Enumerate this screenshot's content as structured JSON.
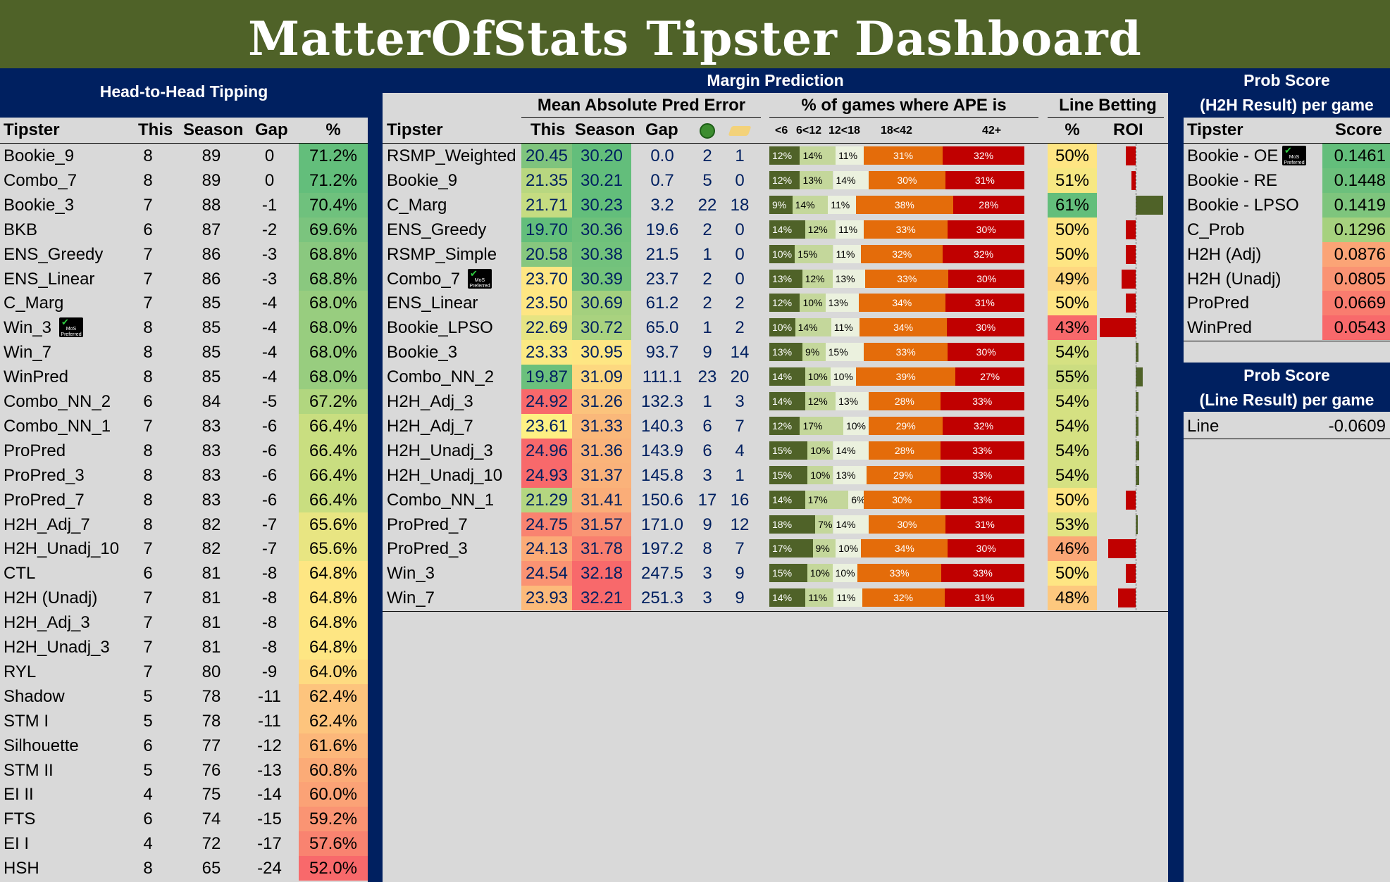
{
  "title": "MatterOfStats Tipster Dashboard",
  "badge": {
    "line1": "MoS",
    "line2": "Preferred"
  },
  "h2h": {
    "heading": "Head-to-Head Tipping",
    "headers": [
      "Tipster",
      "This",
      "Season",
      "Gap",
      "%"
    ],
    "rows": [
      {
        "tipster": "Bookie_9",
        "this": "8",
        "season": "89",
        "gap": "0",
        "pct": "71.2%",
        "color": "#63be7b"
      },
      {
        "tipster": "Combo_7",
        "this": "8",
        "season": "89",
        "gap": "0",
        "pct": "71.2%",
        "color": "#63be7b"
      },
      {
        "tipster": "Bookie_3",
        "this": "7",
        "season": "88",
        "gap": "-1",
        "pct": "70.4%",
        "color": "#6fc17d"
      },
      {
        "tipster": "BKB",
        "this": "6",
        "season": "87",
        "gap": "-2",
        "pct": "69.6%",
        "color": "#7bc47e"
      },
      {
        "tipster": "ENS_Greedy",
        "this": "7",
        "season": "86",
        "gap": "-3",
        "pct": "68.8%",
        "color": "#8ac87f"
      },
      {
        "tipster": "ENS_Linear",
        "this": "7",
        "season": "86",
        "gap": "-3",
        "pct": "68.8%",
        "color": "#8ac87f"
      },
      {
        "tipster": "C_Marg",
        "this": "7",
        "season": "85",
        "gap": "-4",
        "pct": "68.0%",
        "color": "#98cd7f"
      },
      {
        "tipster": "Win_3",
        "this": "8",
        "season": "85",
        "gap": "-4",
        "pct": "68.0%",
        "color": "#98cd7f",
        "badge": true
      },
      {
        "tipster": "Win_7",
        "this": "8",
        "season": "85",
        "gap": "-4",
        "pct": "68.0%",
        "color": "#98cd7f"
      },
      {
        "tipster": "WinPred",
        "this": "8",
        "season": "85",
        "gap": "-4",
        "pct": "68.0%",
        "color": "#98cd7f"
      },
      {
        "tipster": "Combo_NN_2",
        "this": "6",
        "season": "84",
        "gap": "-5",
        "pct": "67.2%",
        "color": "#b1d67f"
      },
      {
        "tipster": "Combo_NN_1",
        "this": "7",
        "season": "83",
        "gap": "-6",
        "pct": "66.4%",
        "color": "#c9de80"
      },
      {
        "tipster": "ProPred",
        "this": "8",
        "season": "83",
        "gap": "-6",
        "pct": "66.4%",
        "color": "#c9de80"
      },
      {
        "tipster": "ProPred_3",
        "this": "8",
        "season": "83",
        "gap": "-6",
        "pct": "66.4%",
        "color": "#c9de80"
      },
      {
        "tipster": "ProPred_7",
        "this": "8",
        "season": "83",
        "gap": "-6",
        "pct": "66.4%",
        "color": "#c9de80"
      },
      {
        "tipster": "H2H_Adj_7",
        "this": "8",
        "season": "82",
        "gap": "-7",
        "pct": "65.6%",
        "color": "#e8e582"
      },
      {
        "tipster": "H2H_Unadj_10",
        "this": "7",
        "season": "82",
        "gap": "-7",
        "pct": "65.6%",
        "color": "#e8e582"
      },
      {
        "tipster": "CTL",
        "this": "6",
        "season": "81",
        "gap": "-8",
        "pct": "64.8%",
        "color": "#fee683"
      },
      {
        "tipster": "H2H (Unadj)",
        "this": "7",
        "season": "81",
        "gap": "-8",
        "pct": "64.8%",
        "color": "#fee683"
      },
      {
        "tipster": "H2H_Adj_3",
        "this": "7",
        "season": "81",
        "gap": "-8",
        "pct": "64.8%",
        "color": "#fee683"
      },
      {
        "tipster": "H2H_Unadj_3",
        "this": "7",
        "season": "81",
        "gap": "-8",
        "pct": "64.8%",
        "color": "#fee683"
      },
      {
        "tipster": "RYL",
        "this": "7",
        "season": "80",
        "gap": "-9",
        "pct": "64.0%",
        "color": "#fedb81"
      },
      {
        "tipster": "Shadow",
        "this": "5",
        "season": "78",
        "gap": "-11",
        "pct": "62.4%",
        "color": "#fdc47d"
      },
      {
        "tipster": "STM I",
        "this": "5",
        "season": "78",
        "gap": "-11",
        "pct": "62.4%",
        "color": "#fdc47d"
      },
      {
        "tipster": "Silhouette",
        "this": "6",
        "season": "77",
        "gap": "-12",
        "pct": "61.6%",
        "color": "#fcb77a"
      },
      {
        "tipster": "STM II",
        "this": "5",
        "season": "76",
        "gap": "-13",
        "pct": "60.8%",
        "color": "#fbab77"
      },
      {
        "tipster": "EI II",
        "this": "4",
        "season": "75",
        "gap": "-14",
        "pct": "60.0%",
        "color": "#fba276"
      },
      {
        "tipster": "FTS",
        "this": "6",
        "season": "74",
        "gap": "-15",
        "pct": "59.2%",
        "color": "#fa9473"
      },
      {
        "tipster": "EI I",
        "this": "4",
        "season": "72",
        "gap": "-17",
        "pct": "57.6%",
        "color": "#f98370"
      },
      {
        "tipster": "HSH",
        "this": "8",
        "season": "65",
        "gap": "-24",
        "pct": "52.0%",
        "color": "#f8696b"
      }
    ]
  },
  "margin": {
    "heading": "Margin Prediction",
    "mape_heading": "Mean Absolute Pred Error",
    "ape_heading": "% of games where APE is",
    "line_heading": "Line Betting",
    "headers": [
      "Tipster",
      "This",
      "Season",
      "Gap",
      "%",
      "ROI"
    ],
    "ape_headers": [
      "<6",
      "6<12",
      "12<18",
      "18<42",
      "42+"
    ],
    "rows": [
      {
        "tipster": "RSMP_Weighted",
        "this": "20.45",
        "this_color": "#7fc47d",
        "season": "30.20",
        "season_color": "#63be7b",
        "gap": "0.0",
        "best": "2",
        "worst": "1",
        "ape": [
          12,
          14,
          11,
          31,
          32
        ],
        "ape_labels": [
          "12%",
          "14%",
          "11%",
          "31%",
          "32%"
        ],
        "pct": "50%",
        "pct_color": "#fee583",
        "roi": -0.14
      },
      {
        "tipster": "Bookie_9",
        "this": "21.35",
        "this_color": "#b8d780",
        "season": "30.21",
        "season_color": "#63be7b",
        "gap": "0.7",
        "best": "5",
        "worst": "0",
        "ape": [
          12,
          13,
          14,
          30,
          31
        ],
        "ape_labels": [
          "12%",
          "13%",
          "14%",
          "30%",
          "31%"
        ],
        "pct": "51%",
        "pct_color": "#f6e883",
        "roi": -0.06
      },
      {
        "tipster": "C_Marg",
        "this": "21.71",
        "this_color": "#c5dc81",
        "season": "30.23",
        "season_color": "#63be7b",
        "gap": "3.2",
        "best": "22",
        "worst": "18",
        "ape": [
          9,
          14,
          11,
          38,
          28
        ],
        "ape_labels": [
          "9%",
          "14%",
          "11%",
          "38%",
          "28%"
        ],
        "pct": "61%",
        "pct_color": "#63be7b",
        "roi": 0.38
      },
      {
        "tipster": "ENS_Greedy",
        "this": "19.70",
        "this_color": "#63be7b",
        "season": "30.36",
        "season_color": "#6ec17b",
        "gap": "19.6",
        "best": "2",
        "worst": "0",
        "ape": [
          14,
          12,
          11,
          33,
          30
        ],
        "ape_labels": [
          "14%",
          "12%",
          "11%",
          "33%",
          "30%"
        ],
        "pct": "50%",
        "pct_color": "#fee583",
        "roi": -0.14
      },
      {
        "tipster": "RSMP_Simple",
        "this": "20.58",
        "this_color": "#87c77e",
        "season": "30.38",
        "season_color": "#72c27c",
        "gap": "21.5",
        "best": "1",
        "worst": "0",
        "ape": [
          10,
          15,
          11,
          32,
          32
        ],
        "ape_labels": [
          "10%",
          "15%",
          "11%",
          "32%",
          "32%"
        ],
        "pct": "50%",
        "pct_color": "#fee583",
        "roi": -0.14
      },
      {
        "tipster": "Combo_7",
        "this": "23.70",
        "this_color": "#fee683",
        "season": "30.39",
        "season_color": "#75c37c",
        "gap": "23.7",
        "best": "2",
        "worst": "0",
        "ape": [
          13,
          12,
          13,
          33,
          30
        ],
        "ape_labels": [
          "13%",
          "12%",
          "13%",
          "33%",
          "30%"
        ],
        "pct": "49%",
        "pct_color": "#fed880",
        "roi": -0.2,
        "badge": true
      },
      {
        "tipster": "ENS_Linear",
        "this": "23.50",
        "this_color": "#fee683",
        "season": "30.69",
        "season_color": "#a4d07e",
        "gap": "61.2",
        "best": "2",
        "worst": "2",
        "ape": [
          12,
          10,
          13,
          34,
          31
        ],
        "ape_labels": [
          "12%",
          "10%",
          "13%",
          "34%",
          "31%"
        ],
        "pct": "50%",
        "pct_color": "#fee583",
        "roi": -0.14
      },
      {
        "tipster": "Bookie_LPSO",
        "this": "22.69",
        "this_color": "#e6e482",
        "season": "30.72",
        "season_color": "#a9d27f",
        "gap": "65.0",
        "best": "1",
        "worst": "2",
        "ape": [
          10,
          14,
          11,
          34,
          30
        ],
        "ape_labels": [
          "10%",
          "14%",
          "11%",
          "34%",
          "30%"
        ],
        "pct": "43%",
        "pct_color": "#f8696b",
        "roi": -0.5
      },
      {
        "tipster": "Bookie_3",
        "this": "23.33",
        "this_color": "#fbe983",
        "season": "30.95",
        "season_color": "#fee683",
        "gap": "93.7",
        "best": "9",
        "worst": "14",
        "ape": [
          13,
          9,
          15,
          33,
          30
        ],
        "ape_labels": [
          "13%",
          "9%",
          "15%",
          "33%",
          "30%"
        ],
        "pct": "54%",
        "pct_color": "#d5e182",
        "roi": 0.04
      },
      {
        "tipster": "Combo_NN_2",
        "this": "19.87",
        "this_color": "#6bc07c",
        "season": "31.09",
        "season_color": "#fdd880",
        "gap": "111.1",
        "best": "23",
        "worst": "20",
        "ape": [
          14,
          10,
          10,
          39,
          27
        ],
        "ape_labels": [
          "14%",
          "10%",
          "10%",
          "39%",
          "27%"
        ],
        "pct": "55%",
        "pct_color": "#ccdd81",
        "roi": 0.1
      },
      {
        "tipster": "H2H_Adj_3",
        "this": "24.92",
        "this_color": "#f8696b",
        "season": "31.26",
        "season_color": "#fbc37c",
        "gap": "132.3",
        "best": "1",
        "worst": "3",
        "ape": [
          14,
          12,
          13,
          28,
          33
        ],
        "ape_labels": [
          "14%",
          "12%",
          "13%",
          "28%",
          "33%"
        ],
        "pct": "54%",
        "pct_color": "#d5e182",
        "roi": 0.04
      },
      {
        "tipster": "H2H_Adj_7",
        "this": "23.61",
        "this_color": "#fef083",
        "season": "31.33",
        "season_color": "#fab87a",
        "gap": "140.3",
        "best": "6",
        "worst": "7",
        "ape": [
          12,
          17,
          10,
          29,
          32
        ],
        "ape_labels": [
          "12%",
          "17%",
          "10%",
          "29%",
          "32%"
        ],
        "pct": "54%",
        "pct_color": "#d5e182",
        "roi": 0.04
      },
      {
        "tipster": "H2H_Unadj_3",
        "this": "24.96",
        "this_color": "#f8696b",
        "season": "31.36",
        "season_color": "#fab47a",
        "gap": "143.9",
        "best": "6",
        "worst": "4",
        "ape": [
          15,
          10,
          14,
          28,
          33
        ],
        "ape_labels": [
          "15%",
          "10%",
          "14%",
          "28%",
          "33%"
        ],
        "pct": "54%",
        "pct_color": "#d5e182",
        "roi": 0.05
      },
      {
        "tipster": "H2H_Unadj_10",
        "this": "24.93",
        "this_color": "#f8696b",
        "season": "31.37",
        "season_color": "#fab27a",
        "gap": "145.8",
        "best": "3",
        "worst": "1",
        "ape": [
          15,
          10,
          13,
          29,
          33
        ],
        "ape_labels": [
          "15%",
          "10%",
          "13%",
          "29%",
          "33%"
        ],
        "pct": "54%",
        "pct_color": "#d5e182",
        "roi": 0.05
      },
      {
        "tipster": "Combo_NN_1",
        "this": "21.29",
        "this_color": "#b4d680",
        "season": "31.41",
        "season_color": "#faad78",
        "gap": "150.6",
        "best": "17",
        "worst": "16",
        "ape": [
          14,
          17,
          6,
          30,
          33
        ],
        "ape_labels": [
          "14%",
          "17%",
          "6%",
          "30%",
          "33%"
        ],
        "pct": "50%",
        "pct_color": "#fee583",
        "roi": -0.14
      },
      {
        "tipster": "ProPred_7",
        "this": "24.75",
        "this_color": "#f98370",
        "season": "31.57",
        "season_color": "#f99574",
        "gap": "171.0",
        "best": "9",
        "worst": "12",
        "ape": [
          18,
          7,
          14,
          30,
          31
        ],
        "ape_labels": [
          "18%",
          "7%",
          "14%",
          "30%",
          "31%"
        ],
        "pct": "53%",
        "pct_color": "#e2e483",
        "roi": 0.0
      },
      {
        "tipster": "ProPred_3",
        "this": "24.13",
        "this_color": "#fbab77",
        "season": "31.78",
        "season_color": "#f97f6f",
        "gap": "197.2",
        "best": "8",
        "worst": "7",
        "ape": [
          17,
          9,
          10,
          34,
          30
        ],
        "ape_labels": [
          "17%",
          "9%",
          "10%",
          "34%",
          "30%"
        ],
        "pct": "46%",
        "pct_color": "#fba776",
        "roi": -0.38
      },
      {
        "tipster": "Win_3",
        "this": "24.54",
        "this_color": "#fa9373",
        "season": "32.18",
        "season_color": "#f8696b",
        "gap": "247.5",
        "best": "3",
        "worst": "9",
        "ape": [
          15,
          10,
          10,
          33,
          33
        ],
        "ape_labels": [
          "15%",
          "10%",
          "10%",
          "33%",
          "33%"
        ],
        "pct": "50%",
        "pct_color": "#fee583",
        "roi": -0.14
      },
      {
        "tipster": "Win_7",
        "this": "23.93",
        "this_color": "#fcba7a",
        "season": "32.21",
        "season_color": "#f8696b",
        "gap": "251.3",
        "best": "3",
        "worst": "9",
        "ape": [
          14,
          11,
          11,
          32,
          31
        ],
        "ape_labels": [
          "14%",
          "11%",
          "11%",
          "32%",
          "31%"
        ],
        "pct": "48%",
        "pct_color": "#fdc87e",
        "roi": -0.25
      }
    ]
  },
  "prob_h2h": {
    "heading1": "Prob Score",
    "heading2": "(H2H Result) per game",
    "headers": [
      "Tipster",
      "Score"
    ],
    "rows": [
      {
        "tipster": "Bookie - OE",
        "score": "0.1461",
        "color": "#63be7b",
        "badge": true
      },
      {
        "tipster": "Bookie - RE",
        "score": "0.1448",
        "color": "#6cc07c"
      },
      {
        "tipster": "Bookie - LPSO",
        "score": "0.1419",
        "color": "#7ec57d"
      },
      {
        "tipster": "C_Prob",
        "score": "0.1296",
        "color": "#a6d17e"
      },
      {
        "tipster": "H2H (Adj)",
        "score": "0.0876",
        "color": "#fba476"
      },
      {
        "tipster": "H2H (Unadj)",
        "score": "0.0805",
        "color": "#fa9373"
      },
      {
        "tipster": "ProPred",
        "score": "0.0669",
        "color": "#f97c6f"
      },
      {
        "tipster": "WinPred",
        "score": "0.0543",
        "color": "#f8696b"
      }
    ]
  },
  "prob_line": {
    "heading1": "Prob Score",
    "heading2": "(Line Result) per game",
    "rows": [
      {
        "tipster": "Line",
        "score": "-0.0609"
      }
    ]
  },
  "colors": {
    "navy": "#002060",
    "olive": "#4f6228",
    "panel": "#d9d9d9",
    "ape": [
      "#4f6228",
      "#c4d79b",
      "#ebf1de",
      "#e46c0a",
      "#c00000"
    ]
  }
}
